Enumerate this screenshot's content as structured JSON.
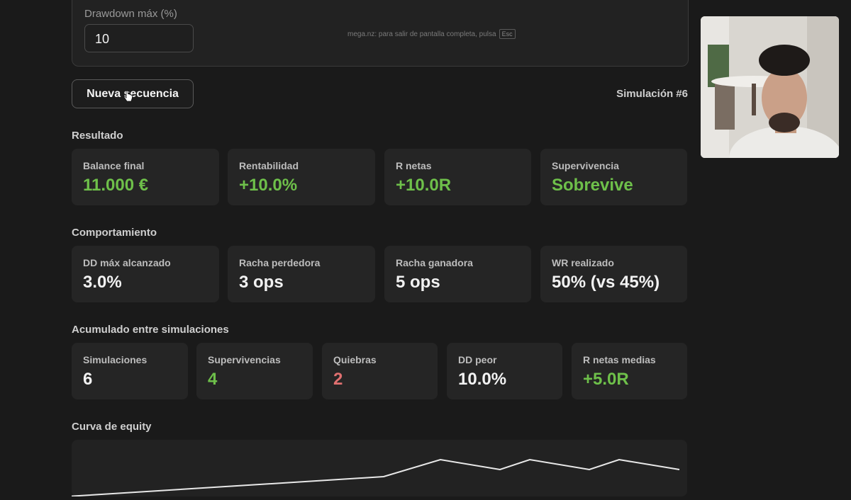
{
  "settings": {
    "drawdown_label": "Drawdown máx (%)",
    "drawdown_value": "10",
    "fullscreen_hint": "mega.nz: para salir de pantalla completa, pulsa",
    "fullscreen_key": "Esc"
  },
  "actions": {
    "new_sequence_label": "Nueva secuencia",
    "simulation_label": "Simulación #6"
  },
  "resultado": {
    "title": "Resultado",
    "cards": [
      {
        "label": "Balance final",
        "value": "11.000 €"
      },
      {
        "label": "Rentabilidad",
        "value": "+10.0%"
      },
      {
        "label": "R netas",
        "value": "+10.0R"
      },
      {
        "label": "Supervivencia",
        "value": "Sobrevive"
      }
    ]
  },
  "comportamiento": {
    "title": "Comportamiento",
    "cards": [
      {
        "label": "DD máx alcanzado",
        "value": "3.0%"
      },
      {
        "label": "Racha perdedora",
        "value": "3 ops"
      },
      {
        "label": "Racha ganadora",
        "value": "5 ops"
      },
      {
        "label": "WR realizado",
        "value": "50% (vs 45%)"
      }
    ]
  },
  "acumulado": {
    "title": "Acumulado entre simulaciones",
    "cards": [
      {
        "label": "Simulaciones",
        "value": "6"
      },
      {
        "label": "Supervivencias",
        "value": "4"
      },
      {
        "label": "Quiebras",
        "value": "2"
      },
      {
        "label": "DD peor",
        "value": "10.0%"
      },
      {
        "label": "R netas medias",
        "value": "+5.0R"
      }
    ]
  },
  "equity": {
    "title": "Curva de equity"
  },
  "colors": {
    "positive": "#6ec04a",
    "negative": "#e07070",
    "background": "#1a1a1a",
    "card": "#252525"
  }
}
